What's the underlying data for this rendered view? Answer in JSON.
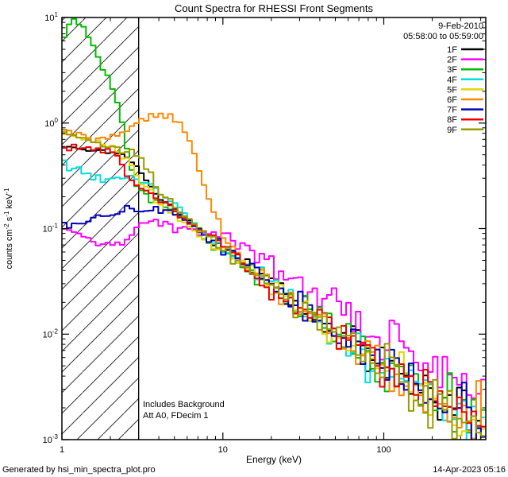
{
  "footer": {
    "left": "Generated by hsi_min_spectra_plot.pro",
    "right": "14-Apr-2023 05:16"
  },
  "chart_data": {
    "type": "line",
    "title": "Count Spectra for RHESSI Front Segments",
    "xlabel": "Energy (keV)",
    "ylabel_parts": [
      {
        "t": "counts cm"
      },
      {
        "t": "-2",
        "sup": true
      },
      {
        "t": " s"
      },
      {
        "t": "-1",
        "sup": true
      },
      {
        "t": " keV"
      },
      {
        "t": "-1",
        "sup": true
      }
    ],
    "xscale": "log",
    "yscale": "log",
    "xlim": [
      1,
      430
    ],
    "ylim": [
      0.001,
      10
    ],
    "grid": false,
    "legend_position": "top-right",
    "legend_dates": [
      "9-Feb-2010",
      "05:58:00 to 05:59:00"
    ],
    "annotations": {
      "line1": "Includes Background",
      "line2": "Att A0, FDecim 1"
    },
    "hatch_region": {
      "from": 1,
      "to": 3
    },
    "x_ticks": [
      {
        "v": 1,
        "label": "1"
      },
      {
        "v": 10,
        "label": "10"
      },
      {
        "v": 100,
        "label": "100"
      }
    ],
    "y_ticks": [
      {
        "v": 10,
        "exp": "1"
      },
      {
        "v": 1,
        "exp": "0"
      },
      {
        "v": 0.1,
        "exp": "-1"
      },
      {
        "v": 0.01,
        "exp": "-2"
      },
      {
        "v": 0.001,
        "exp": "-3"
      }
    ],
    "series": [
      {
        "name": "1F",
        "color": "#000000",
        "points": [
          [
            1,
            0.62
          ],
          [
            1.5,
            0.55
          ],
          [
            2,
            0.55
          ],
          [
            2.5,
            0.5
          ],
          [
            3,
            0.38
          ],
          [
            3.5,
            0.25
          ],
          [
            4,
            0.2
          ],
          [
            5,
            0.16
          ],
          [
            6,
            0.12
          ],
          [
            7,
            0.1
          ],
          [
            8,
            0.085
          ],
          [
            10,
            0.068
          ],
          [
            15,
            0.042
          ],
          [
            20,
            0.03
          ],
          [
            30,
            0.019
          ],
          [
            50,
            0.011
          ],
          [
            70,
            0.0075
          ],
          [
            100,
            0.0052
          ],
          [
            150,
            0.0036
          ],
          [
            200,
            0.0028
          ],
          [
            300,
            0.0018
          ],
          [
            400,
            0.0014
          ]
        ]
      },
      {
        "name": "2F",
        "color": "#ff00ff",
        "points": [
          [
            1,
            0.095
          ],
          [
            1.3,
            0.085
          ],
          [
            1.6,
            0.075
          ],
          [
            2,
            0.07
          ],
          [
            2.5,
            0.08
          ],
          [
            3,
            0.1
          ],
          [
            3.5,
            0.12
          ],
          [
            4,
            0.115
          ],
          [
            5,
            0.105
          ],
          [
            6,
            0.1
          ],
          [
            7,
            0.095
          ],
          [
            8,
            0.09
          ],
          [
            10,
            0.095
          ],
          [
            15,
            0.06
          ],
          [
            20,
            0.046
          ],
          [
            30,
            0.03
          ],
          [
            50,
            0.019
          ],
          [
            70,
            0.013
          ],
          [
            100,
            0.0095
          ],
          [
            150,
            0.0065
          ],
          [
            200,
            0.005
          ],
          [
            300,
            0.0032
          ],
          [
            400,
            0.0025
          ]
        ]
      },
      {
        "name": "3F",
        "color": "#00bb00",
        "points": [
          [
            1,
            5.5
          ],
          [
            1.1,
            9.0
          ],
          [
            1.25,
            9.3
          ],
          [
            1.4,
            7.5
          ],
          [
            1.6,
            5.0
          ],
          [
            1.8,
            3.4
          ],
          [
            2.0,
            2.4
          ],
          [
            2.2,
            1.6
          ],
          [
            2.4,
            0.9
          ],
          [
            2.6,
            0.45
          ],
          [
            2.8,
            0.3
          ],
          [
            3,
            0.24
          ],
          [
            3.5,
            0.2
          ],
          [
            4,
            0.18
          ],
          [
            5,
            0.14
          ],
          [
            6,
            0.11
          ],
          [
            7,
            0.095
          ],
          [
            8,
            0.08
          ],
          [
            10,
            0.065
          ],
          [
            15,
            0.04
          ],
          [
            20,
            0.028
          ],
          [
            30,
            0.018
          ],
          [
            50,
            0.0105
          ],
          [
            70,
            0.0072
          ],
          [
            100,
            0.005
          ],
          [
            150,
            0.0035
          ],
          [
            200,
            0.0027
          ],
          [
            300,
            0.0017
          ],
          [
            400,
            0.0013
          ]
        ]
      },
      {
        "name": "4F",
        "color": "#00dede",
        "points": [
          [
            1,
            0.42
          ],
          [
            1.3,
            0.35
          ],
          [
            1.6,
            0.3
          ],
          [
            2,
            0.3
          ],
          [
            2.5,
            0.31
          ],
          [
            3,
            0.3
          ],
          [
            3.5,
            0.27
          ],
          [
            4,
            0.22
          ],
          [
            5,
            0.17
          ],
          [
            6,
            0.13
          ],
          [
            7,
            0.1
          ],
          [
            8,
            0.085
          ],
          [
            10,
            0.066
          ],
          [
            15,
            0.041
          ],
          [
            20,
            0.029
          ],
          [
            30,
            0.018
          ],
          [
            50,
            0.0105
          ],
          [
            70,
            0.0072
          ],
          [
            100,
            0.005
          ],
          [
            150,
            0.0035
          ],
          [
            200,
            0.0026
          ],
          [
            300,
            0.0017
          ],
          [
            400,
            0.0013
          ]
        ]
      },
      {
        "name": "5F",
        "color": "#e3d400",
        "points": [
          [
            1,
            0.8
          ],
          [
            1.3,
            0.72
          ],
          [
            1.6,
            0.65
          ],
          [
            2,
            0.62
          ],
          [
            2.5,
            0.45
          ],
          [
            3,
            0.3
          ],
          [
            3.5,
            0.22
          ],
          [
            4,
            0.17
          ],
          [
            5,
            0.13
          ],
          [
            6,
            0.1
          ],
          [
            7,
            0.09
          ],
          [
            8,
            0.08
          ],
          [
            10,
            0.064
          ],
          [
            15,
            0.04
          ],
          [
            20,
            0.028
          ],
          [
            30,
            0.017
          ],
          [
            50,
            0.01
          ],
          [
            70,
            0.007
          ],
          [
            100,
            0.0048
          ],
          [
            150,
            0.0034
          ],
          [
            200,
            0.0026
          ],
          [
            300,
            0.0016
          ],
          [
            400,
            0.0012
          ]
        ]
      },
      {
        "name": "6F",
        "color": "#ff8800",
        "points": [
          [
            1,
            0.8
          ],
          [
            1.3,
            0.75
          ],
          [
            1.6,
            0.7
          ],
          [
            2,
            0.72
          ],
          [
            2.5,
            0.85
          ],
          [
            3,
            1.05
          ],
          [
            3.5,
            1.15
          ],
          [
            4,
            1.18
          ],
          [
            4.5,
            1.15
          ],
          [
            5,
            1.1
          ],
          [
            5.5,
            1.0
          ],
          [
            6,
            0.8
          ],
          [
            6.5,
            0.55
          ],
          [
            7,
            0.4
          ],
          [
            7.5,
            0.3
          ],
          [
            8,
            0.22
          ],
          [
            9,
            0.13
          ],
          [
            10,
            0.085
          ],
          [
            12,
            0.06
          ],
          [
            15,
            0.043
          ],
          [
            20,
            0.03
          ],
          [
            30,
            0.019
          ],
          [
            50,
            0.011
          ],
          [
            70,
            0.0075
          ],
          [
            100,
            0.0052
          ],
          [
            150,
            0.0036
          ],
          [
            200,
            0.0027
          ],
          [
            300,
            0.0017
          ],
          [
            400,
            0.0013
          ]
        ]
      },
      {
        "name": "7F",
        "color": "#0000bb",
        "points": [
          [
            1,
            0.105
          ],
          [
            1.3,
            0.11
          ],
          [
            1.6,
            0.12
          ],
          [
            2,
            0.13
          ],
          [
            2.5,
            0.15
          ],
          [
            3,
            0.15
          ],
          [
            3.5,
            0.155
          ],
          [
            4,
            0.15
          ],
          [
            5,
            0.14
          ],
          [
            6,
            0.12
          ],
          [
            7,
            0.1
          ],
          [
            8,
            0.085
          ],
          [
            10,
            0.067
          ],
          [
            15,
            0.042
          ],
          [
            20,
            0.029
          ],
          [
            30,
            0.018
          ],
          [
            50,
            0.0105
          ],
          [
            70,
            0.0072
          ],
          [
            100,
            0.005
          ],
          [
            150,
            0.0035
          ],
          [
            200,
            0.0026
          ],
          [
            300,
            0.0017
          ],
          [
            400,
            0.0013
          ]
        ]
      },
      {
        "name": "8F",
        "color": "#ee0000",
        "points": [
          [
            1,
            0.6
          ],
          [
            1.3,
            0.58
          ],
          [
            1.6,
            0.56
          ],
          [
            2,
            0.55
          ],
          [
            2.3,
            0.45
          ],
          [
            2.6,
            0.3
          ],
          [
            3,
            0.24
          ],
          [
            3.5,
            0.21
          ],
          [
            4,
            0.19
          ],
          [
            5,
            0.15
          ],
          [
            6,
            0.12
          ],
          [
            7,
            0.1
          ],
          [
            8,
            0.085
          ],
          [
            10,
            0.066
          ],
          [
            15,
            0.041
          ],
          [
            20,
            0.029
          ],
          [
            30,
            0.018
          ],
          [
            50,
            0.0105
          ],
          [
            70,
            0.0073
          ],
          [
            100,
            0.005
          ],
          [
            150,
            0.0035
          ],
          [
            200,
            0.0026
          ],
          [
            300,
            0.0017
          ],
          [
            400,
            0.0013
          ]
        ]
      },
      {
        "name": "9F",
        "color": "#9a9a00",
        "points": [
          [
            1,
            0.85
          ],
          [
            1.3,
            0.75
          ],
          [
            1.6,
            0.65
          ],
          [
            2,
            0.6
          ],
          [
            2.5,
            0.55
          ],
          [
            3,
            0.5
          ],
          [
            3.5,
            0.35
          ],
          [
            4,
            0.22
          ],
          [
            5,
            0.16
          ],
          [
            6,
            0.12
          ],
          [
            7,
            0.1
          ],
          [
            8,
            0.085
          ],
          [
            10,
            0.066
          ],
          [
            15,
            0.041
          ],
          [
            20,
            0.029
          ],
          [
            30,
            0.018
          ],
          [
            50,
            0.0105
          ],
          [
            70,
            0.0072
          ],
          [
            100,
            0.005
          ],
          [
            150,
            0.0035
          ],
          [
            200,
            0.0026
          ],
          [
            300,
            0.0016
          ],
          [
            400,
            0.0012
          ]
        ]
      }
    ]
  }
}
